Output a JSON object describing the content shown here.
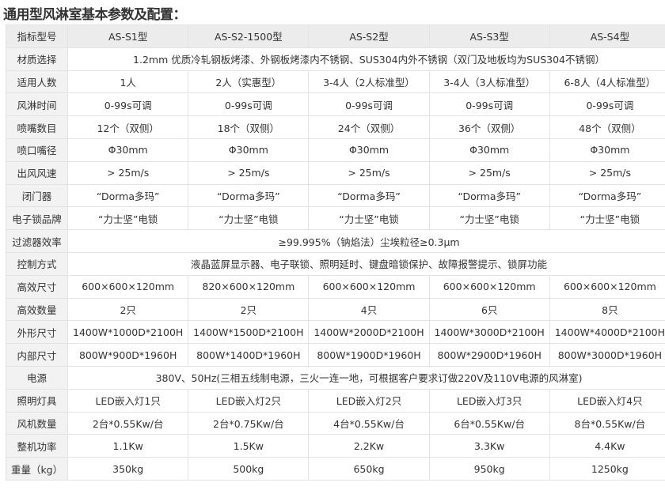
{
  "title": "通用型风淋室基本参数及配置：",
  "rows": [
    {
      "label": "指标型号",
      "cells": [
        "AS-S1型",
        "AS-S2-1500型",
        "AS-S2型",
        "AS-S3型",
        "AS-S4型"
      ]
    },
    {
      "label": "材质选择",
      "span": "1.2mm 优质冷轧钢板烤漆、外钢板烤漆内不锈钢、SUS304内外不锈钢（双门及地板均为SUS304不锈钢）"
    },
    {
      "label": "适用人数",
      "cells": [
        "1人",
        "2人（实惠型）",
        "3-4人（2人标准型）",
        "3-4人（3人标准型）",
        "6-8人（4人标准型）"
      ]
    },
    {
      "label": "风淋时间",
      "cells": [
        "0-99s可调",
        "0-99s可调",
        "0-99s可调",
        "0-99s可调",
        "0-99s可调"
      ]
    },
    {
      "label": "喷嘴数目",
      "cells": [
        "12个（双侧）",
        "18个（双侧）",
        "24个（双侧）",
        "36个（双侧）",
        "48个（双侧）"
      ]
    },
    {
      "label": "喷口嘴径",
      "cells": [
        "Φ30mm",
        "Φ30mm",
        "Φ30mm",
        "Φ30mm",
        "Φ30mm"
      ]
    },
    {
      "label": "出风风速",
      "cells": [
        "> 25m/s",
        "> 25m/s",
        "> 25m/s",
        "> 25m/s",
        "> 25m/s"
      ]
    },
    {
      "label": "闭门器",
      "cells": [
        "“Dorma多玛”",
        "“Dorma多玛”",
        "“Dorma多玛”",
        "“Dorma多玛”",
        "“Dorma多玛”"
      ]
    },
    {
      "label": "电子锁品牌",
      "cells": [
        "“力士坚”电锁",
        "“力士坚”电锁",
        "“力士坚”电锁",
        "“力士坚”电锁",
        "“力士坚”电锁"
      ]
    },
    {
      "label": "过滤器效率",
      "span": "≥99.995%（钠焰法）尘埃粒径≥0.3μm"
    },
    {
      "label": "控制方式",
      "span": "液晶蓝屏显示器、电子联锁、照明延时、键盘暗锁保护、故障报警提示、锁屏功能"
    },
    {
      "label": "高效尺寸",
      "cells": [
        "600×600×120mm",
        "820×600×120mm",
        "600×600×120mm",
        "600×600×120mm",
        "600×600×120mm"
      ]
    },
    {
      "label": "高效数量",
      "cells": [
        "2只",
        "2只",
        "4只",
        "6只",
        "8只"
      ]
    },
    {
      "label": "外形尺寸",
      "cells": [
        "1400W*1000D*2100H",
        "1400W*1500D*2100H",
        "1400W*2000D*2100H",
        "1400W*3000D*2100H",
        "1400W*4000D*2100H"
      ]
    },
    {
      "label": "内部尺寸",
      "cells": [
        "800W*900D*1960H",
        "800W*1400D*1960H",
        "800W*1900D*1960H",
        "800W*2900D*1960H",
        "800W*3000D*1960H"
      ]
    },
    {
      "label": "电源",
      "span": "380V、50Hz(三相五线制电源，三火一连一地，可根据客户要求订做220V及110V电源的风淋室)"
    },
    {
      "label": "照明灯具",
      "cells": [
        "LED嵌入灯1只",
        "LED嵌入灯2只",
        "LED嵌入灯2只",
        "LED嵌入灯3只",
        "LED嵌入灯4只"
      ]
    },
    {
      "label": "风机数量",
      "cells": [
        "2台*0.55Kw/台",
        "2台*0.75Kw/台",
        "4台*0.55Kw/台",
        "6台*0.55Kw/台",
        "8台*0.55Kw/台"
      ]
    },
    {
      "label": "整机功率",
      "cells": [
        "1.1Kw",
        "1.5Kw",
        "2.2Kw",
        "3.3Kw",
        "4.4Kw"
      ]
    },
    {
      "label": "重量（kg）",
      "cells": [
        "350kg",
        "500kg",
        "650kg",
        "950kg",
        "1250kg"
      ]
    }
  ]
}
